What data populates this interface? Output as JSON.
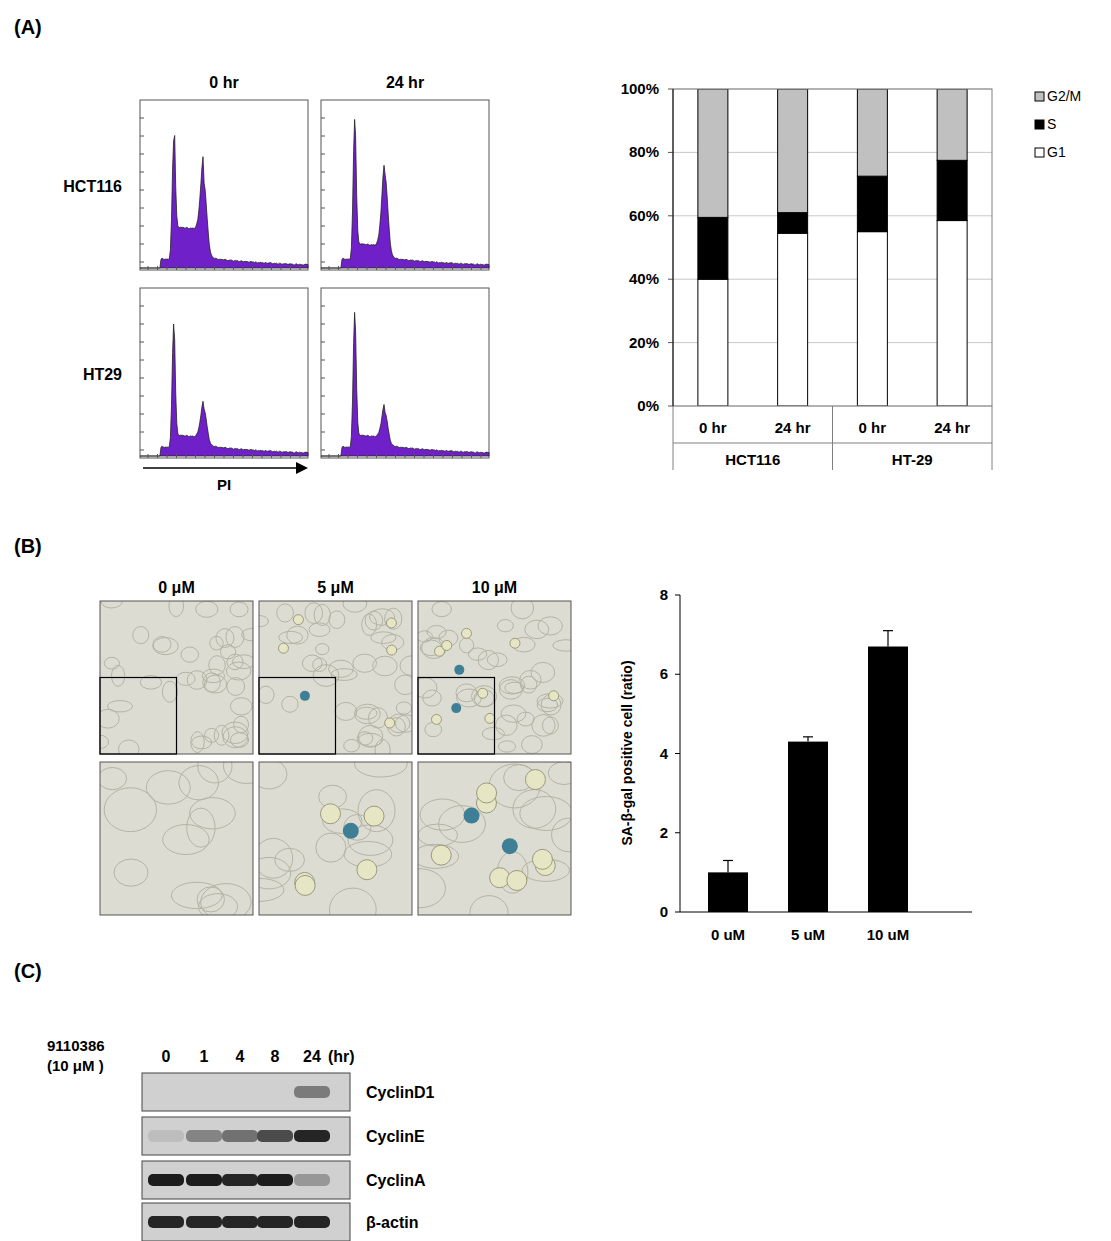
{
  "panel_labels": [
    "(A)",
    "(B)",
    "(C)"
  ],
  "flow": {
    "columns": [
      "0 hr",
      "24 hr"
    ],
    "rows": [
      "HCT116",
      "HT29"
    ],
    "x_label": "PI"
  },
  "chart_data": [
    {
      "type": "bar",
      "stacked": true,
      "categories": [
        "0 hr",
        "24 hr",
        "0 hr",
        "24 hr"
      ],
      "group_labels": [
        "HCT116",
        "HT-29"
      ],
      "series": [
        {
          "name": "G1",
          "color": "#ffffff",
          "values": [
            40,
            54.5,
            55,
            58.5
          ]
        },
        {
          "name": "S",
          "color": "#000000",
          "values": [
            19.5,
            6.5,
            17.5,
            19
          ]
        },
        {
          "name": "G2/M",
          "color": "#c0c0c0",
          "values": [
            40.5,
            39,
            27.5,
            22.5
          ]
        }
      ],
      "ylim": [
        0,
        100
      ],
      "yticks": [
        {
          "value": 0,
          "label": "0%"
        },
        {
          "value": 20,
          "label": "20%"
        },
        {
          "value": 40,
          "label": "40%"
        },
        {
          "value": 60,
          "label": "60%"
        },
        {
          "value": 80,
          "label": "80%"
        },
        {
          "value": 100,
          "label": "100%"
        }
      ],
      "grid": true,
      "legend": "right"
    },
    {
      "type": "bar",
      "categories": [
        "0 uM",
        "5 uM",
        "10 uM"
      ],
      "values": [
        1,
        4.3,
        6.7
      ],
      "errors": [
        0.3,
        0.12,
        0.4
      ],
      "color": "#000000",
      "y_label": "SA-β-gal positive cell (ratio)",
      "ylim": [
        0,
        8
      ],
      "yticks": [
        0,
        2,
        4,
        6,
        8
      ],
      "grid": false
    }
  ],
  "microscopy": {
    "columns": [
      "0 μM",
      "5 μM",
      "10 μM"
    ]
  },
  "blot": {
    "treatment": "9110386",
    "dose": "(10 μM )",
    "lanes": [
      "0",
      "1",
      "4",
      "8",
      "24"
    ],
    "unit": "(hr)",
    "rows": [
      {
        "name": "CyclinD1",
        "intensity": [
          0,
          0,
          0,
          0,
          0.45
        ]
      },
      {
        "name": "CyclinE",
        "intensity": [
          0.1,
          0.4,
          0.5,
          0.7,
          0.9
        ]
      },
      {
        "name": "CyclinA",
        "intensity": [
          0.95,
          0.95,
          0.9,
          0.95,
          0.3
        ]
      },
      {
        "name": "β-actin",
        "intensity": [
          0.9,
          0.9,
          0.9,
          0.9,
          0.9
        ]
      }
    ]
  }
}
